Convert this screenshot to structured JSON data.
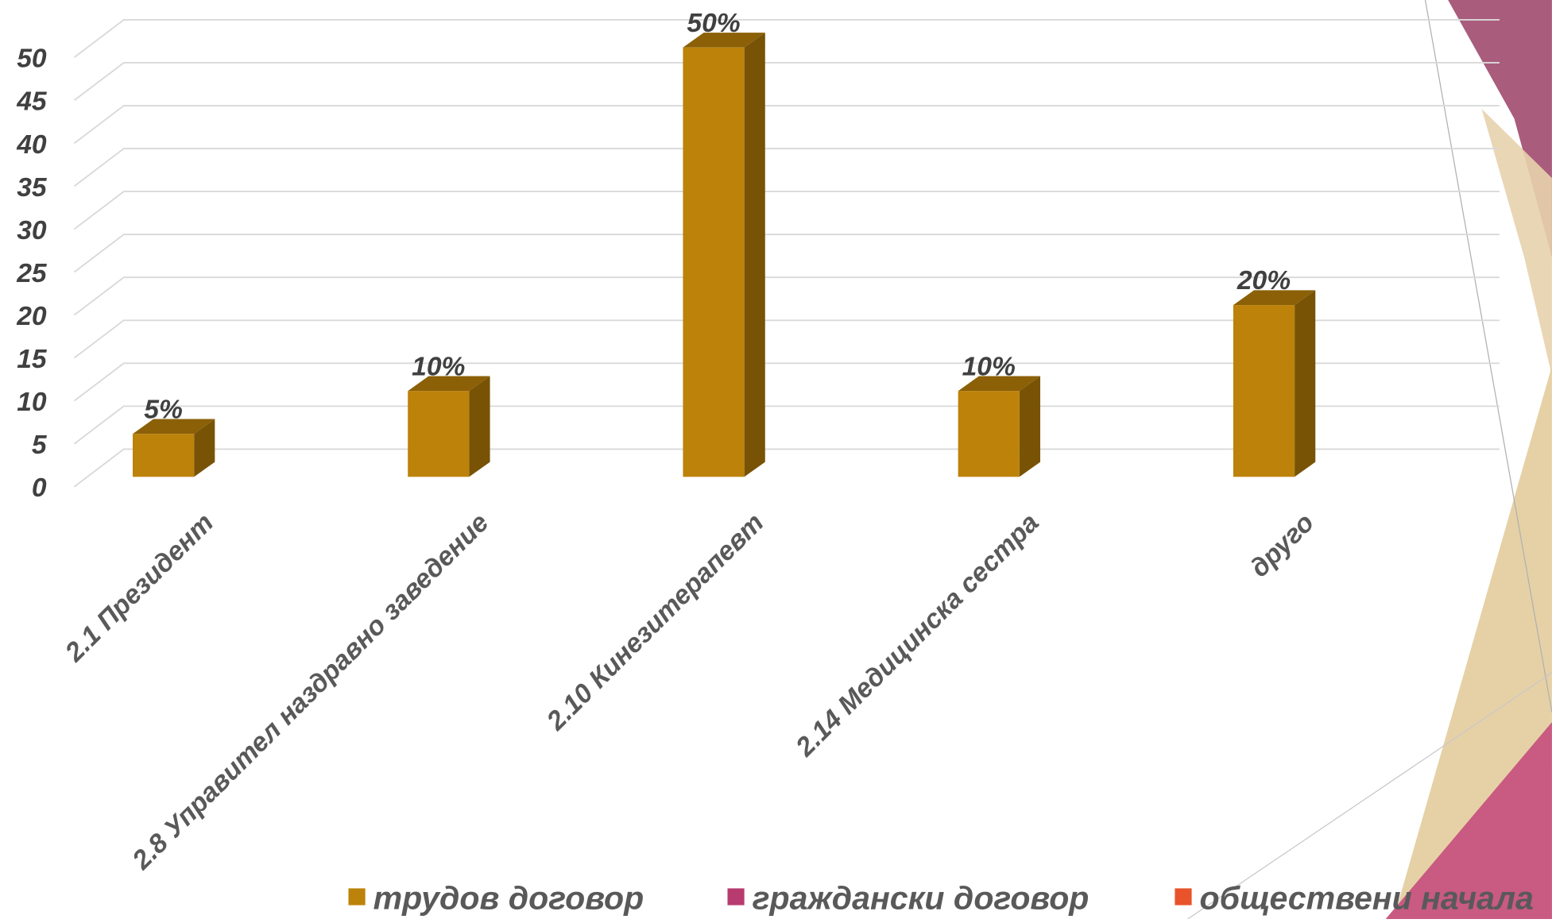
{
  "chart_data": {
    "type": "bar3d",
    "categories": [
      "2.1 Президент",
      "2.8 Управител наздравно заведение",
      "2.10 Кинезитерапевт",
      "2.14 Медицинска сестра",
      "друго"
    ],
    "series": [
      {
        "name": "трудов договор",
        "color": "#bc820a",
        "values": [
          5,
          10,
          50,
          10,
          20
        ],
        "value_labels": [
          "5%",
          "10%",
          "50%",
          "10%",
          "20%"
        ]
      },
      {
        "name": "граждански договор",
        "color": "#b83b6f",
        "values": [
          null,
          null,
          null,
          null,
          null
        ]
      },
      {
        "name": "обществени начала",
        "color": "#e8532b",
        "values": [
          null,
          null,
          null,
          null,
          null
        ]
      }
    ],
    "ylim": [
      0,
      50
    ],
    "yticks": [
      0,
      5,
      10,
      15,
      20,
      25,
      30,
      35,
      40,
      45,
      50
    ],
    "grid": true,
    "legend": "bottom"
  }
}
